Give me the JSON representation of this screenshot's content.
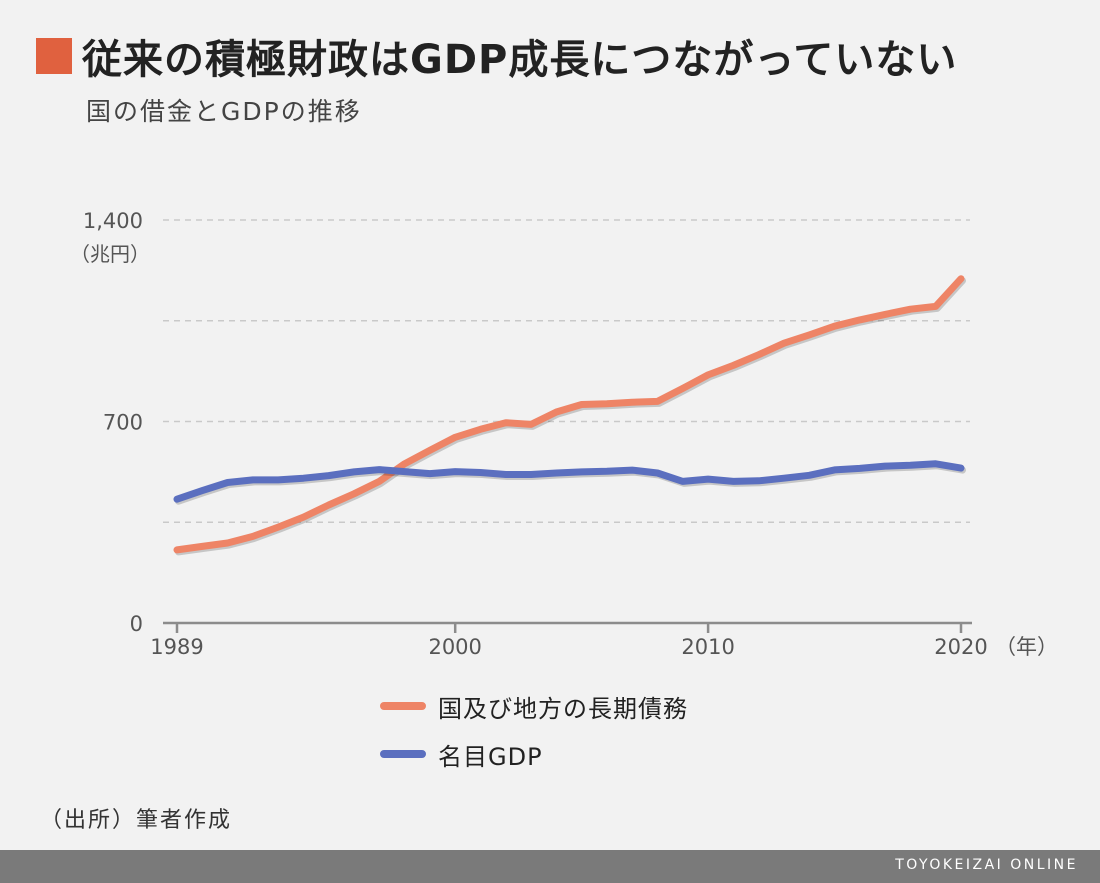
{
  "header": {
    "title": "従来の積極財政はGDP成長につながっていない",
    "subtitle": "国の借金とGDPの推移",
    "marker_color": "#e0613f"
  },
  "chart_data": {
    "type": "line",
    "x": [
      1989,
      1990,
      1991,
      1992,
      1993,
      1994,
      1995,
      1996,
      1997,
      1998,
      1999,
      2000,
      2001,
      2002,
      2003,
      2004,
      2005,
      2006,
      2007,
      2008,
      2009,
      2010,
      2011,
      2012,
      2013,
      2014,
      2015,
      2016,
      2017,
      2018,
      2019,
      2020
    ],
    "series": [
      {
        "name": "国及び地方の長期債務",
        "color": "#ee8466",
        "values": [
          254,
          266,
          278,
          301,
          333,
          368,
          410,
          449,
          492,
          553,
          600,
          645,
          673,
          696,
          690,
          733,
          759,
          762,
          767,
          770,
          815,
          862,
          895,
          932,
          972,
          1001,
          1031,
          1053,
          1072,
          1090,
          1100,
          1196
        ]
      },
      {
        "name": "名目GDP",
        "color": "#5b6fbf",
        "values": [
          430,
          460,
          488,
          497,
          497,
          503,
          512,
          525,
          533,
          526,
          519,
          526,
          523,
          516,
          516,
          521,
          525,
          527,
          531,
          521,
          492,
          500,
          492,
          494,
          503,
          513,
          532,
          537,
          545,
          548,
          553,
          538
        ]
      }
    ],
    "ylim": [
      0,
      1400
    ],
    "y_ticks": [
      0,
      700,
      1400
    ],
    "y_tick_labels": [
      "0",
      "700",
      "1,400"
    ],
    "y_minor_gridlines": [
      350,
      1050
    ],
    "x_ticks": [
      1989,
      2000,
      2010,
      2020
    ],
    "x_tick_labels": [
      "1989",
      "2000",
      "2010",
      "2020"
    ],
    "ylabel": "（兆円）",
    "xlabel": "（年）",
    "grid": true,
    "legend_position": "bottom"
  },
  "source": "（出所）筆者作成",
  "footer": {
    "brand": "TOYOKEIZAI ONLINE"
  }
}
